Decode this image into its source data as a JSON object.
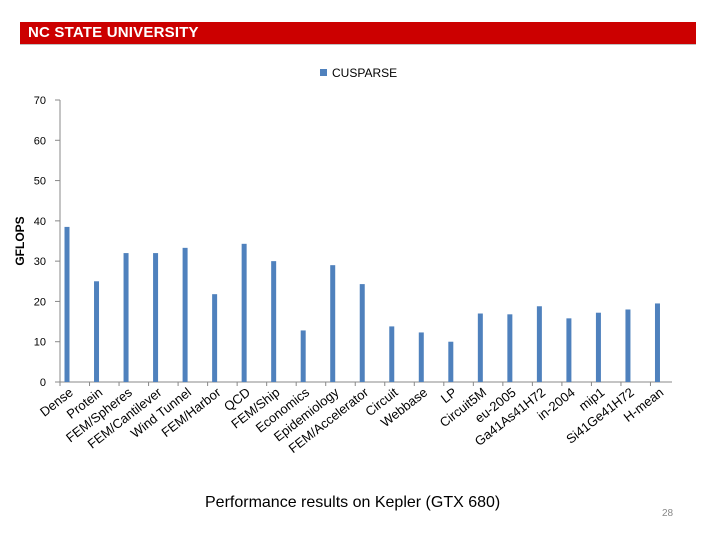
{
  "banner": {
    "text": "NC STATE UNIVERSITY"
  },
  "chart_data": {
    "type": "bar",
    "title": "",
    "xlabel": "",
    "ylabel": "GFLOPS",
    "ylim": [
      0,
      70
    ],
    "yticks": [
      0,
      10,
      20,
      30,
      40,
      50,
      60,
      70
    ],
    "legend": {
      "position": "top",
      "entries": [
        "CUSPARSE"
      ]
    },
    "series": [
      {
        "name": "CUSPARSE",
        "color": "#4f81bd",
        "values": [
          38.5,
          25,
          32,
          32,
          33.3,
          21.8,
          34.3,
          30,
          12.8,
          29,
          24.3,
          13.8,
          12.3,
          10,
          17,
          16.8,
          18.8,
          15.8,
          17.2,
          18,
          19.5
        ]
      }
    ],
    "categories": [
      "Dense",
      "Protein",
      "FEM/Spheres",
      "FEM/Cantilever",
      "Wind Tunnel",
      "FEM/Harbor",
      "QCD",
      "FEM/Ship",
      "Economics",
      "Epidemiology",
      "FEM/Accelerator",
      "Circuit",
      "Webbase",
      "LP",
      "Circuit5M",
      "eu-2005",
      "Ga41As41H72",
      "in-2004",
      "mip1",
      "Si41Ge41H72",
      "H-mean"
    ]
  },
  "footer": {
    "caption": "Performance results on Kepler (GTX 680)",
    "page_number": "28"
  }
}
